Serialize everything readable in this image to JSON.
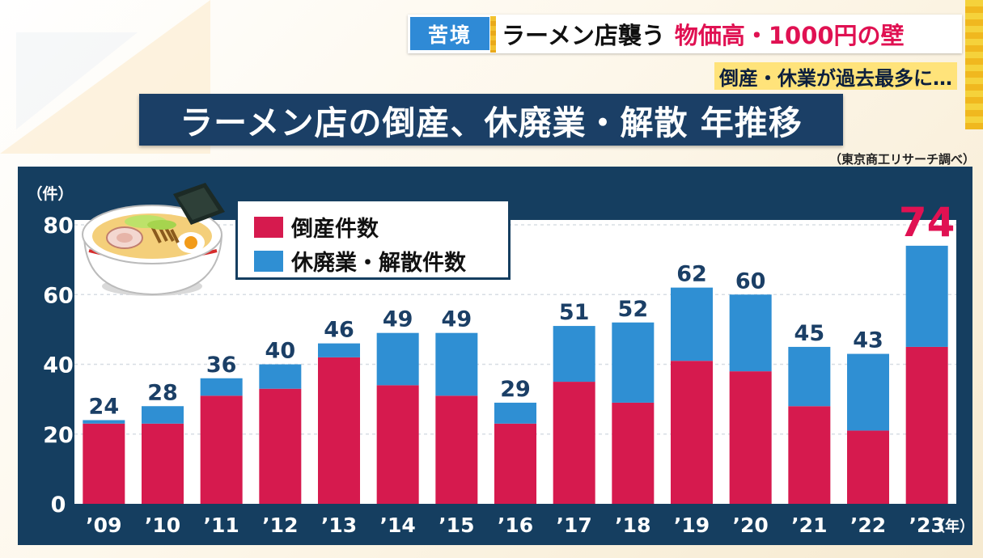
{
  "header": {
    "tag": "苦境",
    "main_black": "ラーメン店襲う",
    "main_highlight": "物価高・1000円の壁",
    "sub": "倒産・休業が過去最多に…"
  },
  "title": "ラーメン店の倒産、休廃業・解散 年推移",
  "source": "（東京商工リサーチ調べ）",
  "colors": {
    "bankruptcy": "#d61a4e",
    "closure": "#2f8fd3",
    "panel": "#153e60",
    "highlight": "#e01152"
  },
  "chart_data": {
    "type": "bar",
    "stacked": true,
    "title": "ラーメン店の倒産、休廃業・解散 年推移",
    "ylabel": "（件）",
    "xlabel": "（年）",
    "ylim": [
      0,
      80
    ],
    "yticks": [
      0,
      20,
      40,
      60,
      80
    ],
    "categories": [
      "’09",
      "’10",
      "’11",
      "’12",
      "’13",
      "’14",
      "’15",
      "’16",
      "’17",
      "’18",
      "’19",
      "’20",
      "’21",
      "’22",
      "’23"
    ],
    "series": [
      {
        "name": "倒産件数",
        "values": [
          23,
          23,
          31,
          33,
          42,
          34,
          31,
          23,
          35,
          29,
          41,
          38,
          28,
          21,
          45
        ]
      },
      {
        "name": "休廃業・解散件数",
        "values": [
          1,
          5,
          5,
          7,
          4,
          15,
          18,
          6,
          16,
          23,
          21,
          22,
          17,
          22,
          29
        ]
      }
    ],
    "totals": [
      24,
      28,
      36,
      40,
      46,
      49,
      49,
      29,
      51,
      52,
      62,
      60,
      45,
      43,
      74
    ],
    "highlight_index": 14
  }
}
